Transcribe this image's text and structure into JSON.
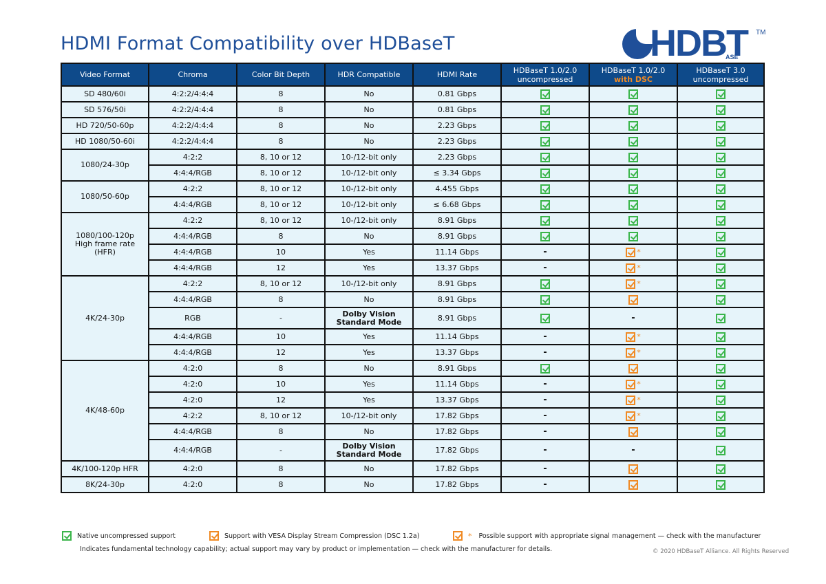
{
  "header": {
    "title": "HDMI Format Compatibility over HDBaseT",
    "logo_text": "HDBT",
    "logo_sub": "ASE",
    "logo_tm": "TM"
  },
  "columns": [
    {
      "line1": "Video Format"
    },
    {
      "line1": "Chroma"
    },
    {
      "line1": "Color Bit Depth"
    },
    {
      "line1": "HDR Compatible"
    },
    {
      "line1": "HDMI Rate"
    },
    {
      "line1": "HDBaseT 1.0/2.0",
      "line2": "uncompressed"
    },
    {
      "line1": "HDBaseT 1.0/2.0",
      "line2": "with DSC"
    },
    {
      "line1": "HDBaseT 3.0",
      "line2": "uncompressed"
    }
  ],
  "groups": [
    {
      "format": "SD 480/60i",
      "rows": [
        {
          "chroma": "4:2:2/4:4:4",
          "depth": "8",
          "hdr": "No",
          "rate": "0.81 Gbps",
          "t12": "native",
          "dsc": "native",
          "t3": "native"
        }
      ]
    },
    {
      "format": "SD 576/50i",
      "rows": [
        {
          "chroma": "4:2:2/4:4:4",
          "depth": "8",
          "hdr": "No",
          "rate": "0.81 Gbps",
          "t12": "native",
          "dsc": "native",
          "t3": "native"
        }
      ]
    },
    {
      "format": "HD 720/50-60p",
      "rows": [
        {
          "chroma": "4:2:2/4:4:4",
          "depth": "8",
          "hdr": "No",
          "rate": "2.23 Gbps",
          "t12": "native",
          "dsc": "native",
          "t3": "native"
        }
      ]
    },
    {
      "format": "HD 1080/50-60i",
      "rows": [
        {
          "chroma": "4:2:2/4:4:4",
          "depth": "8",
          "hdr": "No",
          "rate": "2.23 Gbps",
          "t12": "native",
          "dsc": "native",
          "t3": "native"
        }
      ]
    },
    {
      "format": "1080/24-30p",
      "rows": [
        {
          "chroma": "4:2:2",
          "depth": "8, 10 or 12",
          "hdr": "10-/12-bit only",
          "rate": "2.23 Gbps",
          "t12": "native",
          "dsc": "native",
          "t3": "native"
        },
        {
          "chroma": "4:4:4/RGB",
          "depth": "8, 10 or 12",
          "hdr": "10-/12-bit only",
          "rate": "≤ 3.34 Gbps",
          "t12": "native",
          "dsc": "native",
          "t3": "native"
        }
      ]
    },
    {
      "format": "1080/50-60p",
      "rows": [
        {
          "chroma": "4:2:2",
          "depth": "8, 10 or 12",
          "hdr": "10-/12-bit only",
          "rate": "4.455 Gbps",
          "t12": "native",
          "dsc": "native",
          "t3": "native"
        },
        {
          "chroma": "4:4:4/RGB",
          "depth": "8, 10 or 12",
          "hdr": "10-/12-bit only",
          "rate": "≤ 6.68 Gbps",
          "t12": "native",
          "dsc": "native",
          "t3": "native"
        }
      ]
    },
    {
      "format": "1080/100-120p\nHigh frame rate\n(HFR)",
      "rows": [
        {
          "chroma": "4:2:2",
          "depth": "8, 10 or 12",
          "hdr": "10-/12-bit only",
          "rate": "8.91 Gbps",
          "t12": "native",
          "dsc": "native",
          "t3": "native"
        },
        {
          "chroma": "4:4:4/RGB",
          "depth": "8",
          "hdr": "No",
          "rate": "8.91 Gbps",
          "t12": "native",
          "dsc": "native",
          "t3": "native"
        },
        {
          "chroma": "4:4:4/RGB",
          "depth": "10",
          "hdr": "Yes",
          "rate": "11.14 Gbps",
          "t12": "none",
          "dsc": "possible",
          "t3": "native"
        },
        {
          "chroma": "4:4:4/RGB",
          "depth": "12",
          "hdr": "Yes",
          "rate": "13.37 Gbps",
          "t12": "none",
          "dsc": "possible",
          "t3": "native"
        }
      ]
    },
    {
      "format": "4K/24-30p",
      "rows": [
        {
          "chroma": "4:2:2",
          "depth": "8, 10 or 12",
          "hdr": "10-/12-bit only",
          "rate": "8.91 Gbps",
          "t12": "native",
          "dsc": "possible",
          "t3": "native"
        },
        {
          "chroma": "4:4:4/RGB",
          "depth": "8",
          "hdr": "No",
          "rate": "8.91 Gbps",
          "t12": "native",
          "dsc": "dsc",
          "t3": "native"
        },
        {
          "chroma": "RGB",
          "depth": "-",
          "hdr": "Dolby Vision\nStandard Mode",
          "hdr_bold": true,
          "rate": "8.91 Gbps",
          "t12": "native",
          "dsc": "none",
          "t3": "native",
          "tall": true
        },
        {
          "chroma": "4:4:4/RGB",
          "depth": "10",
          "hdr": "Yes",
          "rate": "11.14 Gbps",
          "t12": "none",
          "dsc": "possible",
          "t3": "native"
        },
        {
          "chroma": "4:4:4/RGB",
          "depth": "12",
          "hdr": "Yes",
          "rate": "13.37 Gbps",
          "t12": "none",
          "dsc": "possible",
          "t3": "native"
        }
      ]
    },
    {
      "format": "4K/48-60p",
      "rows": [
        {
          "chroma": "4:2:0",
          "depth": "8",
          "hdr": "No",
          "rate": "8.91 Gbps",
          "t12": "native",
          "dsc": "dsc",
          "t3": "native"
        },
        {
          "chroma": "4:2:0",
          "depth": "10",
          "hdr": "Yes",
          "rate": "11.14 Gbps",
          "t12": "none",
          "dsc": "possible",
          "t3": "native"
        },
        {
          "chroma": "4:2:0",
          "depth": "12",
          "hdr": "Yes",
          "rate": "13.37 Gbps",
          "t12": "none",
          "dsc": "possible",
          "t3": "native"
        },
        {
          "chroma": "4:2:2",
          "depth": "8, 10 or 12",
          "hdr": "10-/12-bit only",
          "rate": "17.82 Gbps",
          "t12": "none",
          "dsc": "possible",
          "t3": "native"
        },
        {
          "chroma": "4:4:4/RGB",
          "depth": "8",
          "hdr": "No",
          "rate": "17.82 Gbps",
          "t12": "none",
          "dsc": "dsc",
          "t3": "native"
        },
        {
          "chroma": "4:4:4/RGB",
          "depth": "-",
          "hdr": "Dolby Vision\nStandard Mode",
          "hdr_bold": true,
          "rate": "17.82 Gbps",
          "t12": "none",
          "dsc": "none",
          "t3": "native",
          "tall": true
        }
      ]
    },
    {
      "format": "4K/100-120p HFR",
      "rows": [
        {
          "chroma": "4:2:0",
          "depth": "8",
          "hdr": "No",
          "rate": "17.82 Gbps",
          "t12": "none",
          "dsc": "dsc",
          "t3": "native"
        }
      ]
    },
    {
      "format": "8K/24-30p",
      "rows": [
        {
          "chroma": "4:2:0",
          "depth": "8",
          "hdr": "No",
          "rate": "17.82 Gbps",
          "t12": "none",
          "dsc": "dsc",
          "t3": "native"
        }
      ]
    }
  ],
  "symbols": {
    "none": "-",
    "star": "*"
  },
  "legend": {
    "native": "Native uncompressed support",
    "dsc": "Support with VESA Display Stream Compression (DSC 1.2a)",
    "possible": "Possible support with appropriate signal management — check with the manufacturer",
    "note": "Indicates fundamental technology capability; actual support may vary by product or implementation  — check with the manufacturer for details.",
    "copyright": "© 2020 HDBaseT Alliance. All Rights Reserved"
  },
  "colors": {
    "header_bg": "#0e4a8a",
    "cell_bg": "#e6f4fa",
    "native": "#3ab54a",
    "dsc": "#f08a24",
    "title": "#1f4f99"
  }
}
